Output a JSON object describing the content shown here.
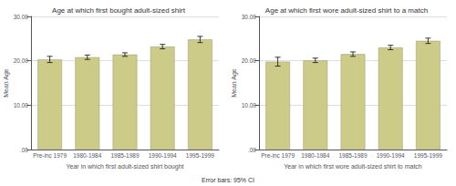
{
  "chart_data": [
    {
      "type": "bar",
      "title": "Age at which first bought adult-sized shirt",
      "xlabel": "Year in which first adult-sized shirt bought",
      "ylabel": "Mean Age",
      "categories": [
        "Pre-inc 1979",
        "1980-1984",
        "1985-1989",
        "1990-1994",
        "1995-1999"
      ],
      "values": [
        20.3,
        20.8,
        21.4,
        23.2,
        24.8
      ],
      "errors": [
        0.7,
        0.5,
        0.4,
        0.5,
        0.7
      ],
      "color": "#cccc88",
      "ylim": [
        0,
        30
      ],
      "yticks": [
        {
          "value": 0,
          "label": ".00"
        },
        {
          "value": 10,
          "label": "10.00"
        },
        {
          "value": 20,
          "label": "20.00"
        },
        {
          "value": 30,
          "label": "30.00"
        }
      ],
      "grid": true
    },
    {
      "type": "bar",
      "title": "Age at which first wore adult-sized shirt to a match",
      "xlabel": "Year in which first wore adult-sized shirt to match",
      "ylabel": "Mean Age",
      "categories": [
        "Pre-inc 1979",
        "1980-1984",
        "1985-1989",
        "1990-1994",
        "1995-1999"
      ],
      "values": [
        19.8,
        20.1,
        21.5,
        23.0,
        24.5
      ],
      "errors": [
        1.0,
        0.5,
        0.5,
        0.5,
        0.6
      ],
      "color": "#cccc88",
      "ylim": [
        0,
        30
      ],
      "yticks": [
        {
          "value": 0,
          "label": ".00"
        },
        {
          "value": 10,
          "label": "10.00"
        },
        {
          "value": 20,
          "label": "20.00"
        },
        {
          "value": 30,
          "label": "30.00"
        }
      ],
      "grid": true
    }
  ],
  "annotations": [
    "Error bars: 95% CI"
  ]
}
